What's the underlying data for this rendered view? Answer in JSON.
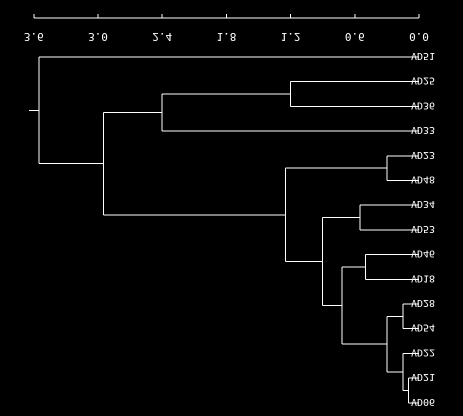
{
  "chart_data": {
    "type": "dendrogram",
    "orientation": "root-left, leaves-right, axis reversed, mirrored text",
    "axis": {
      "ticks": [
        3.6,
        3.0,
        2.4,
        1.8,
        1.2,
        0.6,
        0.0
      ],
      "tick_labels": [
        "3.6",
        "3.0",
        "2.4",
        "1.8",
        "1.2",
        "0.6",
        "0.0"
      ],
      "range": [
        3.6,
        0.0
      ]
    },
    "leaves": [
      "VD51",
      "VD25",
      "VD36",
      "VD33",
      "VD23",
      "VD48",
      "VD34",
      "VD53",
      "VD46",
      "VD18",
      "VD28",
      "VD54",
      "VD22",
      "VD21",
      "VD06"
    ],
    "merges": [
      {
        "a": "VD25",
        "b": "VD36",
        "height": 1.2
      },
      {
        "a": "VD23",
        "b": "VD48",
        "height": 0.3
      },
      {
        "a": "VD34",
        "b": "VD53",
        "height": 0.55
      },
      {
        "a": "VD46",
        "b": "VD18",
        "height": 0.5
      },
      {
        "a": "VD28",
        "b": "VD54",
        "height": 0.15
      },
      {
        "a": "VD21",
        "b": "VD06",
        "height": 0.1
      },
      {
        "a": "VD22",
        "b": "(VD21,VD06)",
        "height": 0.15
      },
      {
        "a": "(VD28,VD54)",
        "b": "(VD22,VD21,VD06)",
        "height": 0.3
      },
      {
        "a": "(VD46,VD18)",
        "b": "(VD28,VD54,VD22,VD21,VD06)",
        "height": 0.72
      },
      {
        "a": "(VD34,VD53)",
        "b": "(VD46..VD06)",
        "height": 0.9
      },
      {
        "a": "(VD23,VD48)",
        "b": "(VD34..VD06)",
        "height": 1.25
      },
      {
        "a": "(VD25,VD36)",
        "b": "VD33",
        "height": 2.4
      },
      {
        "a": "(VD25,VD36,VD33)",
        "b": "(VD23..VD06)",
        "height": 2.95
      },
      {
        "a": "VD51",
        "b": "(all others)",
        "height": 3.55
      }
    ]
  }
}
